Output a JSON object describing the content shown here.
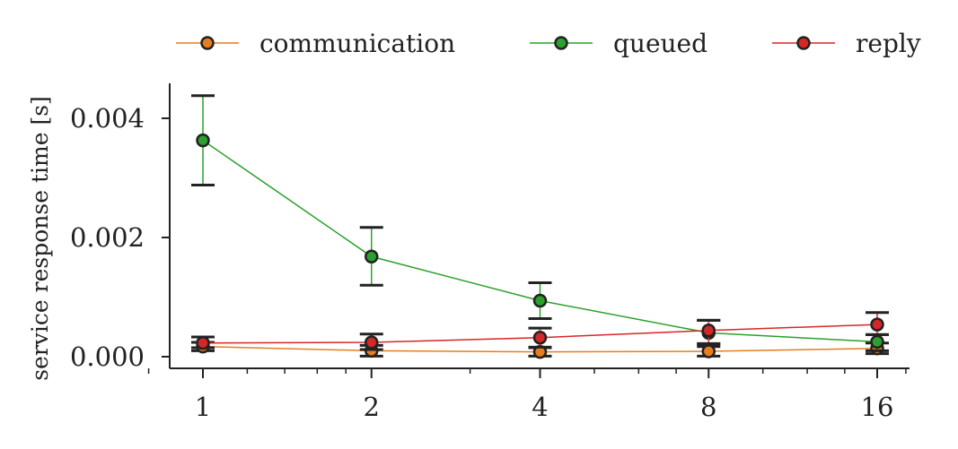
{
  "chart_data": {
    "type": "line",
    "xscale": "log2",
    "x": [
      1,
      2,
      4,
      8,
      16
    ],
    "x_tick_labels": [
      "1",
      "2",
      "4",
      "8",
      "16"
    ],
    "ylabel": "service response time [s]",
    "ylim": [
      -0.0002,
      0.0046
    ],
    "y_ticks": [
      0.0,
      0.002,
      0.004
    ],
    "y_tick_labels": [
      "0.000",
      "0.002",
      "0.004"
    ],
    "grid": false,
    "legend_position": "top",
    "series": [
      {
        "name": "communication",
        "color": "#e87d1e",
        "values": [
          0.00017,
          0.0001,
          8e-05,
          9e-05,
          0.00014
        ],
        "err_low": [
          0.0001,
          1e-05,
          1e-05,
          1e-05,
          5e-05
        ],
        "err_high": [
          0.00024,
          0.00019,
          0.00015,
          0.00017,
          0.00023
        ]
      },
      {
        "name": "queued",
        "color": "#2ca02c",
        "values": [
          0.00363,
          0.00168,
          0.00094,
          0.0004,
          0.00025
        ],
        "err_low": [
          0.00288,
          0.0012,
          0.00064,
          0.00021,
          0.0001
        ],
        "err_high": [
          0.00438,
          0.00217,
          0.00124,
          0.00061,
          0.00037
        ]
      },
      {
        "name": "reply",
        "color": "#d62728",
        "values": [
          0.00023,
          0.00024,
          0.00032,
          0.00044,
          0.00054
        ],
        "err_low": [
          0.00015,
          0.00012,
          0.00016,
          0.00022,
          0.00037
        ],
        "err_high": [
          0.00033,
          0.00038,
          0.00048,
          0.00061,
          0.00074
        ]
      }
    ]
  }
}
